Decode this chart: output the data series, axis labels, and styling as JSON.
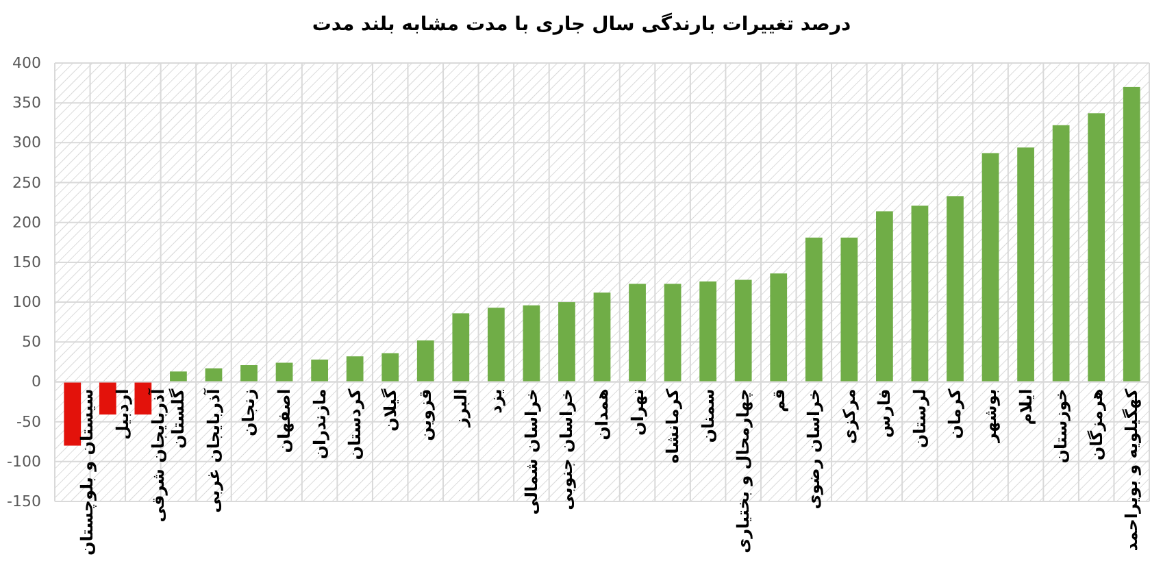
{
  "chart_data": {
    "type": "bar",
    "title": "درصد تغییرات بارندگی سال جاری با مدت مشابه بلند مدت",
    "categories": [
      "سیستان و بلوچستان",
      "اردبیل",
      "آذربایجان شرقی",
      "گلستان",
      "آذربایجان غربی",
      "زنجان",
      "اصفهان",
      "مازندران",
      "کردستان",
      "گیلان",
      "قزوین",
      "البرز",
      "یزد",
      "خراسان شمالی",
      "خراسان جنوبی",
      "همدان",
      "تهران",
      "کرمانشاه",
      "سمنان",
      "چهارمحال و بختیاری",
      "قم",
      "خراسان رضوی",
      "مرکزی",
      "فارس",
      "لرستان",
      "کرمان",
      "بوشهر",
      "ایلام",
      "خوزستان",
      "هرمزگان",
      "کهگیلویه و بویراحمد"
    ],
    "values": [
      -80,
      -41,
      -41,
      13,
      17,
      21,
      24,
      28,
      32,
      36,
      52,
      86,
      93,
      96,
      100,
      112,
      123,
      123,
      126,
      128,
      136,
      181,
      181,
      214,
      221,
      233,
      287,
      294,
      322,
      337,
      370
    ],
    "colors": [
      "#e3120b",
      "#e3120b",
      "#e3120b",
      "#70ad47",
      "#70ad47",
      "#70ad47",
      "#70ad47",
      "#70ad47",
      "#70ad47",
      "#70ad47",
      "#70ad47",
      "#70ad47",
      "#70ad47",
      "#70ad47",
      "#70ad47",
      "#70ad47",
      "#70ad47",
      "#70ad47",
      "#70ad47",
      "#70ad47",
      "#70ad47",
      "#70ad47",
      "#70ad47",
      "#70ad47",
      "#70ad47",
      "#70ad47",
      "#70ad47",
      "#70ad47",
      "#70ad47",
      "#70ad47",
      "#70ad47"
    ],
    "ylim": [
      -150,
      400
    ],
    "yticks": [
      -150,
      -100,
      -50,
      0,
      50,
      100,
      150,
      200,
      250,
      300,
      350,
      400
    ],
    "grid": true
  }
}
